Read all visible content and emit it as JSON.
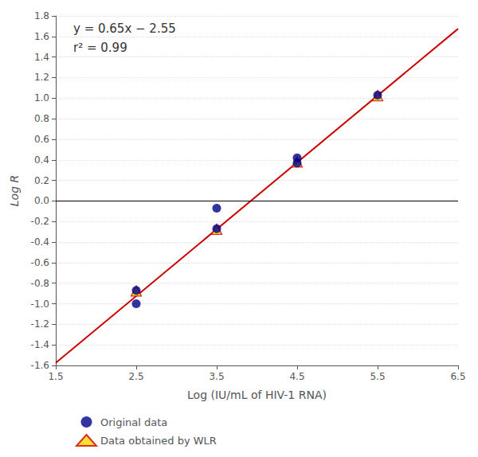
{
  "chart_data": {
    "type": "scatter",
    "xlabel": "Log (IU/mL of HIV-1 RNA)",
    "ylabel": "Log R",
    "xlim": [
      1.5,
      6.5
    ],
    "ylim": [
      -1.6,
      1.8
    ],
    "xticks": [
      1.5,
      2.5,
      3.5,
      4.5,
      5.5,
      6.5
    ],
    "yticks": [
      -1.6,
      -1.4,
      -1.2,
      {
        "value": -1.0,
        "label": "-1.0"
      },
      -0.8,
      -0.6,
      -0.4,
      -0.2,
      {
        "value": 0,
        "label": "0.0"
      },
      0.2,
      0.4,
      0.6,
      0.8,
      {
        "value": 1.0,
        "label": "1.0"
      },
      1.2,
      1.4,
      1.6,
      1.8
    ],
    "grid": true,
    "legend": "bottom",
    "annotations": [
      "y = 0.65x − 2.55",
      "r² = 0.99"
    ],
    "hline": {
      "value": 0,
      "color": "#000000"
    },
    "series": [
      {
        "name": "Original data",
        "type": "scatter",
        "marker": "circle",
        "color": "#00008B",
        "x": [
          2.5,
          2.5,
          3.5,
          3.5,
          4.5,
          4.5,
          5.5
        ],
        "values": [
          -0.87,
          -1.0,
          -0.07,
          -0.27,
          0.42,
          0.37,
          1.03
        ]
      },
      {
        "name": "Data obtained by WLR",
        "type": "scatter",
        "marker": "triangle",
        "color": "#FFD700",
        "x": [
          2.5,
          3.5,
          4.5,
          5.5
        ],
        "values": [
          -0.875,
          -0.275,
          0.38,
          1.025
        ]
      },
      {
        "type": "line",
        "line_style": "solid",
        "color": "#CC0000",
        "x": [
          1.5,
          6.5
        ],
        "values": [
          -1.575,
          1.675
        ]
      }
    ]
  }
}
